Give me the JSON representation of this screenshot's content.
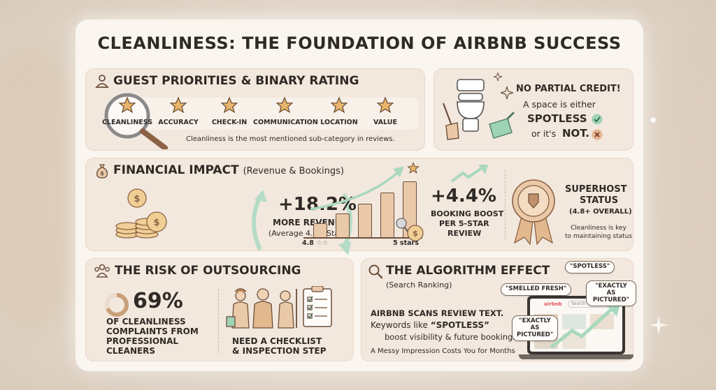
{
  "title": "CLEANLINESS: THE FOUNDATION OF AIRBNB SUCCESS",
  "guest": {
    "title": "GUEST PRIORITIES & BINARY RATING",
    "items": [
      "CLEANLINESS",
      "ACCURACY",
      "CHECK-IN",
      "COMMUNICATION",
      "LOCATION",
      "VALUE"
    ],
    "note": "Cleanliness is the most mentioned sub-category in reviews."
  },
  "credit": {
    "title": "NO PARTIAL CREDIT!",
    "line1": "A space is either",
    "spotless": "SPOTLESS",
    "or_its": "or it's",
    "not": "NOT."
  },
  "financial": {
    "title": "FINANCIAL IMPACT",
    "subtitle": "(Revenue & Bookings)",
    "revenue_value": "+18.2%",
    "revenue_label": "MORE REVENUE",
    "revenue_note": "(Average 4.9+ Stars)",
    "axis_start": "4.8",
    "axis_end": "5 stars",
    "boost_value": "+4.4%",
    "boost_line1": "BOOKING BOOST",
    "boost_line2": "PER 5-STAR",
    "boost_line3": "REVIEW"
  },
  "superhost": {
    "line1": "SUPERHOST",
    "line2": "STATUS",
    "line3": "(4.8+ OVERALL)",
    "note1": "Cleanliness is key",
    "note2": "to maintaining status"
  },
  "outsourcing": {
    "title": "THE RISK OF OUTSOURCING",
    "value": "69%",
    "progress": 0.69,
    "line1": "OF CLEANLINESS",
    "line2": "COMPLAINTS FROM",
    "line3": "PROFESSIONAL",
    "line4": "CLEANERS",
    "need1": "NEED A CHECKLIST",
    "need2": "& INSPECTION STEP"
  },
  "algorithm": {
    "title": "THE ALGORITHM EFFECT",
    "subtitle": "(Search Ranking)",
    "scan": "AIRBNB SCANS REVIEW TEXT.",
    "kw_prefix": "Keywords like",
    "kw_word": "“SPOTLESS”",
    "kw_line2": "boost visibility & future bookings.",
    "footer": "A Messy Impression Costs You for Months",
    "bubbles": [
      "\"SPOTLESS\"",
      "\"SMELLED FRESH\"",
      "\"EXACTLY AS PICTURED\"",
      "\"EXACTLY AS PICTURED\""
    ],
    "laptop_brand": "airbnb",
    "laptop_search": "Search"
  },
  "colors": {
    "accent": "#c9a07a",
    "star": "#e8b56a",
    "dark": "#2f2a26",
    "green": "#9fd3b5",
    "panel": "#f3e8de"
  }
}
